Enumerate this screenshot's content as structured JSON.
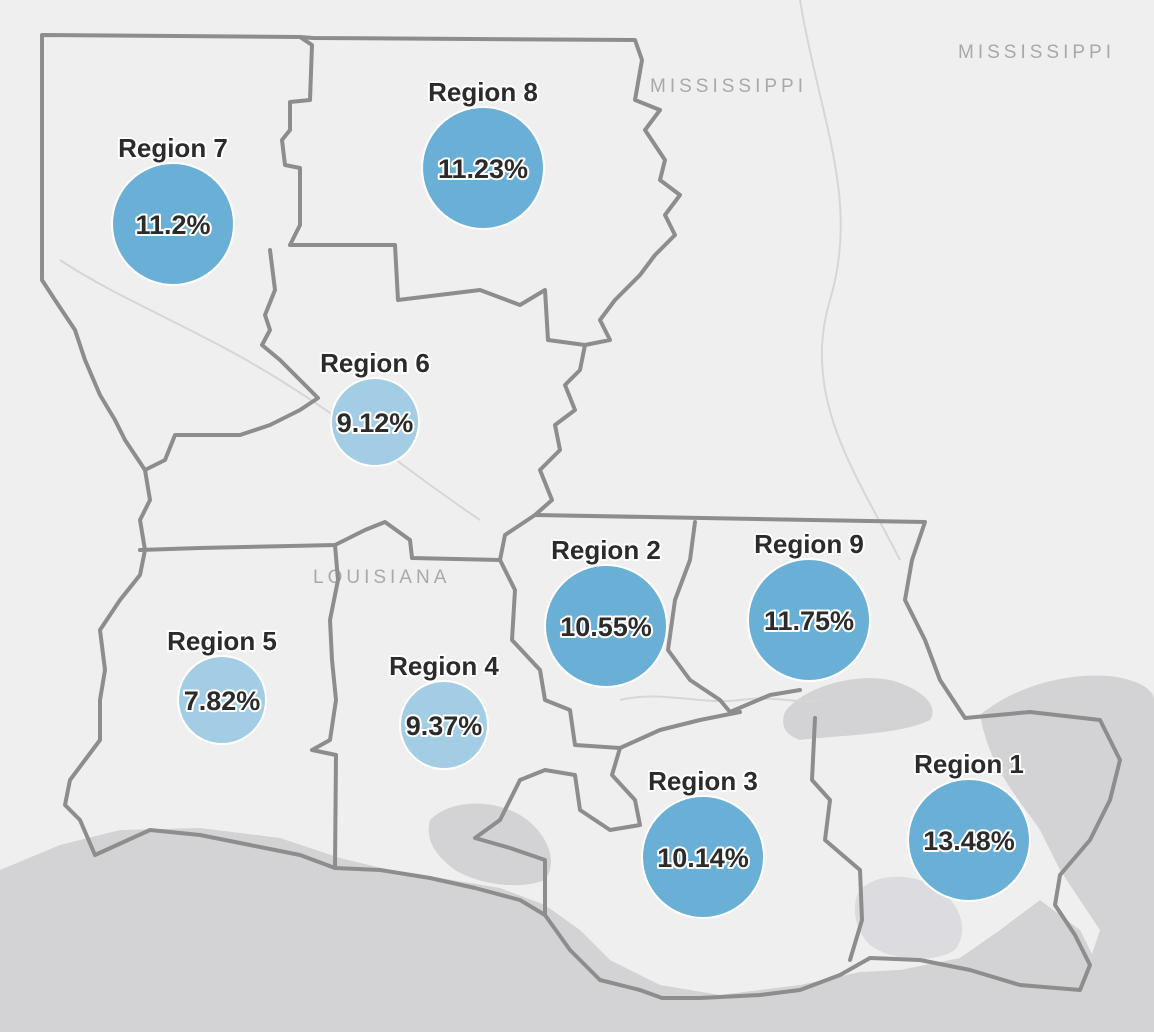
{
  "map": {
    "basemap_labels": {
      "state_mississippi_east": "MISSISSIPPI",
      "state_mississippi_river": "MISSISSIPPI",
      "state_louisiana": "LOUISIANA"
    },
    "colors": {
      "land": "#efefef",
      "water": "#d3d3d6",
      "border": "#8d8d8d",
      "bubble_dark": "#6aafd6",
      "bubble_light": "#a3cde4"
    },
    "regions": [
      {
        "name": "Region 1",
        "value": "13.48%",
        "percent": 13.48
      },
      {
        "name": "Region 2",
        "value": "10.55%",
        "percent": 10.55
      },
      {
        "name": "Region 3",
        "value": "10.14%",
        "percent": 10.14
      },
      {
        "name": "Region 4",
        "value": "9.37%",
        "percent": 9.37
      },
      {
        "name": "Region 5",
        "value": "7.82%",
        "percent": 7.82
      },
      {
        "name": "Region 6",
        "value": "9.12%",
        "percent": 9.12
      },
      {
        "name": "Region 7",
        "value": "11.2%",
        "percent": 11.2
      },
      {
        "name": "Region 8",
        "value": "11.23%",
        "percent": 11.23
      },
      {
        "name": "Region 9",
        "value": "11.75%",
        "percent": 11.75
      }
    ]
  }
}
